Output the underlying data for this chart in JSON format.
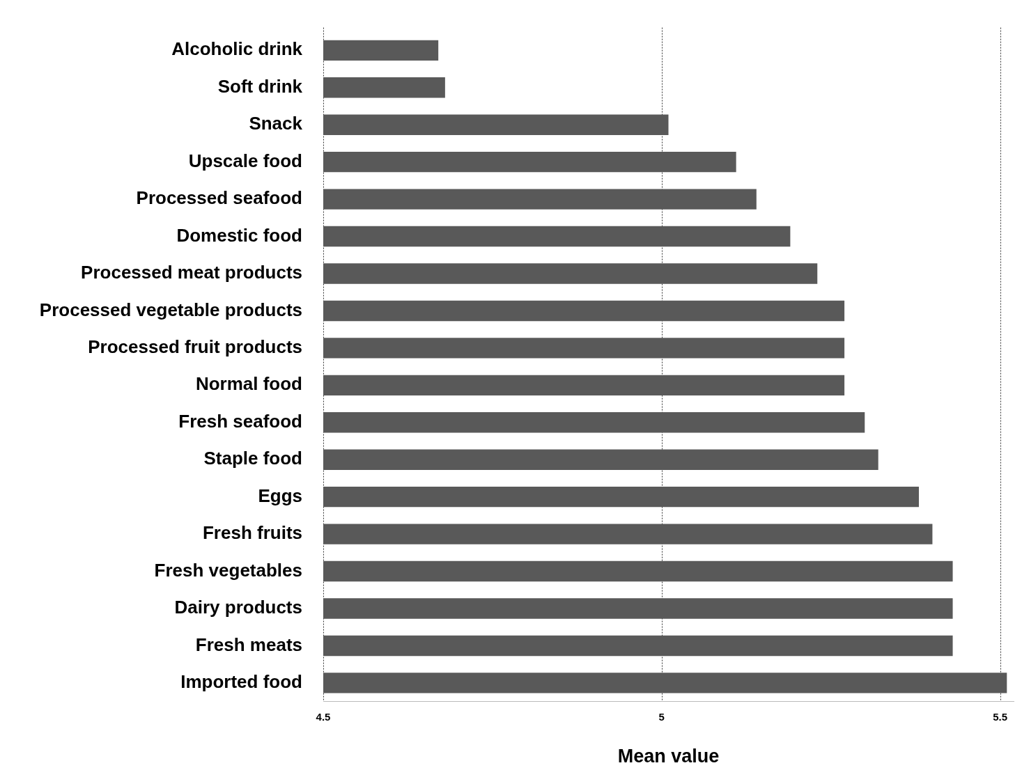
{
  "chart_data": {
    "type": "bar",
    "orientation": "horizontal",
    "xlabel": "Mean value",
    "categories": [
      "Alcoholic drink",
      "Soft drink",
      "Snack",
      "Upscale food",
      "Processed seafood",
      "Domestic food",
      "Processed meat products",
      "Processed vegetable products",
      "Processed fruit products",
      "Normal food",
      "Fresh seafood",
      "Staple food",
      "Eggs",
      "Fresh fruits",
      "Fresh vegetables",
      "Dairy products",
      "Fresh meats",
      "Imported food"
    ],
    "values": [
      4.67,
      4.68,
      5.01,
      5.11,
      5.14,
      5.19,
      5.23,
      5.27,
      5.27,
      5.27,
      5.3,
      5.32,
      5.38,
      5.4,
      5.43,
      5.43,
      5.43,
      5.51
    ],
    "color": "#595959",
    "xlim": [
      4.5,
      5.52
    ],
    "xticks": [
      4.5,
      5,
      5.5
    ],
    "grid": "x",
    "legend": false
  }
}
